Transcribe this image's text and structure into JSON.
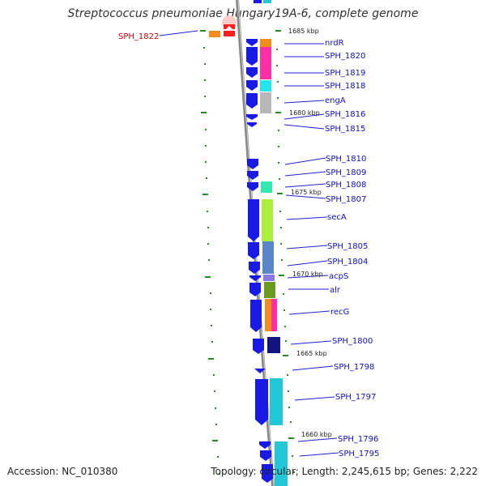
{
  "title": "Streptococcus pneumoniae Hungary19A-6, complete genome",
  "footer": {
    "accession": "Accession: NC_010380",
    "topology": "Topology: circular; Length: 2,245,615 bp; Genes: 2,222"
  },
  "scale_labels": [
    "1685 kbp",
    "1680 kbp",
    "1675 kbp",
    "1670 kbp",
    "1665 kbp",
    "1660 kbp"
  ],
  "gene_labels": [
    "SPH_1822",
    "nrdR",
    "SPH_1820",
    "SPH_1819",
    "SPH_1818",
    "engA",
    "SPH_1816",
    "SPH_1815",
    "SPH_1810",
    "SPH_1809",
    "SPH_1808",
    "SPH_1807",
    "secA",
    "SPH_1805",
    "SPH_1804",
    "acpS",
    "alr",
    "recG",
    "SPH_1800",
    "SPH_1798",
    "SPH_1797",
    "SPH_1796",
    "SPH_1795"
  ],
  "colors": {
    "cds": "#1a1ae6",
    "gene_label": "#1010c0",
    "highlight_label": "#cc0000",
    "tick": "#2a8a2a",
    "backbone": "#888888"
  }
}
